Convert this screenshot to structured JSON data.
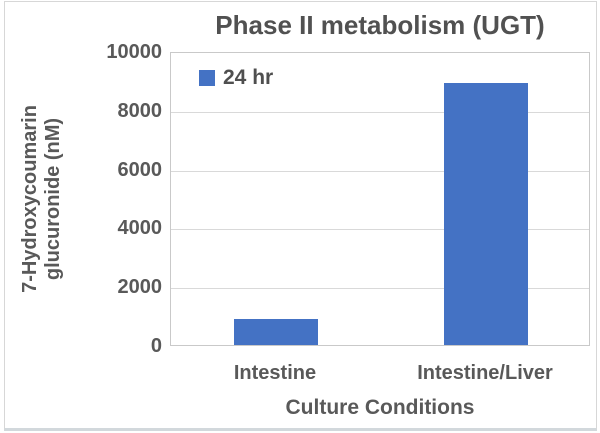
{
  "chart_data": {
    "type": "bar",
    "title": "Phase II metabolism (UGT)",
    "xlabel": "Culture Conditions",
    "ylabel": "7-Hydroxycoumarin glucuronide (nM)",
    "ylabel_lines": [
      "7-Hydroxycoumarin",
      "glucuronide (nM)"
    ],
    "categories": [
      "Intestine",
      "Intestine/Liver"
    ],
    "series": [
      {
        "name": "24 hr",
        "values": [
          900,
          8900
        ]
      }
    ],
    "ylim": [
      0,
      10000
    ],
    "yticks": [
      0,
      2000,
      4000,
      6000,
      8000,
      10000
    ],
    "grid": true,
    "legend_position": "top-left-inside"
  },
  "colors": {
    "bar": "#4472C4",
    "title_text": "#515151",
    "axis_text": "#595959",
    "gridline": "#d9d9d9",
    "plot_border": "#c9c9c9",
    "frame_border": "#d7d7d7"
  }
}
